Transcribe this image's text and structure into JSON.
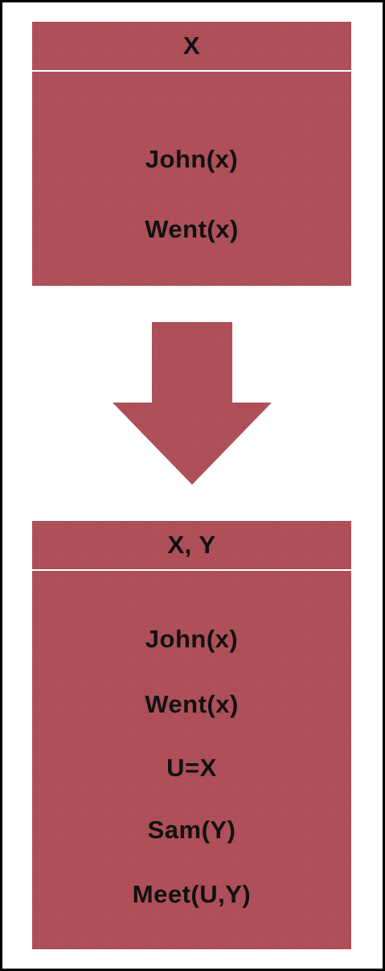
{
  "diagram": {
    "first_drs": {
      "header": "X",
      "conditions": [
        "John(x)",
        "Went(x)"
      ]
    },
    "second_drs": {
      "header": "X, Y",
      "conditions": [
        "John(x)",
        "Went(x)",
        "U=X",
        "Sam(Y)",
        "Meet(U,Y)"
      ]
    },
    "colors": {
      "box_fill": "#b0505a",
      "text": "#111111",
      "divider": "#ffffff",
      "border": "#000000"
    }
  }
}
